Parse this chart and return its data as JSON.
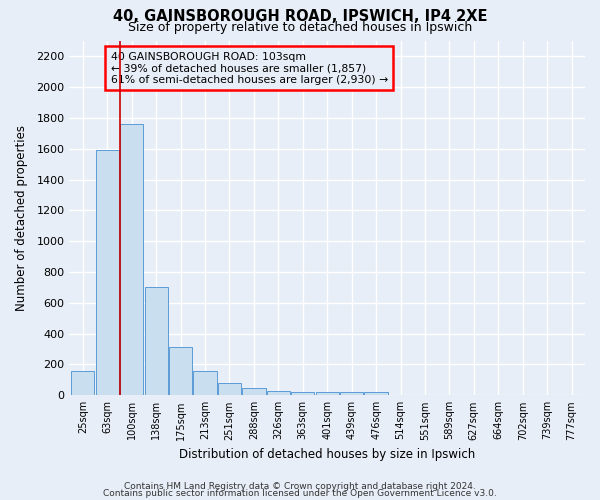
{
  "title": "40, GAINSBOROUGH ROAD, IPSWICH, IP4 2XE",
  "subtitle": "Size of property relative to detached houses in Ipswich",
  "xlabel": "Distribution of detached houses by size in Ipswich",
  "ylabel": "Number of detached properties",
  "bar_labels": [
    "25sqm",
    "63sqm",
    "100sqm",
    "138sqm",
    "175sqm",
    "213sqm",
    "251sqm",
    "288sqm",
    "326sqm",
    "363sqm",
    "401sqm",
    "439sqm",
    "476sqm",
    "514sqm",
    "551sqm",
    "589sqm",
    "627sqm",
    "664sqm",
    "702sqm",
    "739sqm",
    "777sqm"
  ],
  "bar_values": [
    160,
    1590,
    1760,
    700,
    315,
    155,
    80,
    45,
    25,
    20,
    20,
    20,
    20,
    0,
    0,
    0,
    0,
    0,
    0,
    0,
    0
  ],
  "bar_color": "#c9dff0",
  "bar_edgecolor": "#5b9bd5",
  "vline_x_idx": 2,
  "vline_color": "#cc0000",
  "annotation_lines": [
    "40 GAINSBOROUGH ROAD: 103sqm",
    "← 39% of detached houses are smaller (1,857)",
    "61% of semi-detached houses are larger (2,930) →"
  ],
  "ylim": [
    0,
    2300
  ],
  "yticks": [
    0,
    200,
    400,
    600,
    800,
    1000,
    1200,
    1400,
    1600,
    1800,
    2000,
    2200
  ],
  "bg_color": "#e8eef7",
  "grid_color": "#ffffff",
  "footer_line1": "Contains HM Land Registry data © Crown copyright and database right 2024.",
  "footer_line2": "Contains public sector information licensed under the Open Government Licence v3.0."
}
